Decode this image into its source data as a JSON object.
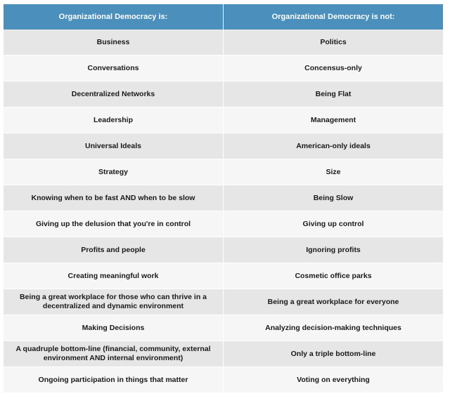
{
  "table": {
    "headers": [
      "Organizational Democracy is:",
      "Organizational Democracy is not:"
    ],
    "rows": [
      [
        "Business",
        "Politics"
      ],
      [
        "Conversations",
        "Concensus-only"
      ],
      [
        "Decentralized Networks",
        "Being Flat"
      ],
      [
        "Leadership",
        "Management"
      ],
      [
        "Universal Ideals",
        "American-only ideals"
      ],
      [
        "Strategy",
        "Size"
      ],
      [
        "Knowing when to be fast AND when to be slow",
        "Being Slow"
      ],
      [
        "Giving up the delusion that you're in control",
        "Giving up control"
      ],
      [
        "Profits and people",
        "Ignoring profits"
      ],
      [
        "Creating meaningful work",
        "Cosmetic office parks"
      ],
      [
        "Being a great workplace for those who can thrive in a decentralized and dynamic environment",
        "Being a great workplace for everyone"
      ],
      [
        "Making Decisions",
        "Analyzing decision-making techniques"
      ],
      [
        "A quadruple bottom-line (financial, community, external environment AND internal environment)",
        "Only a triple bottom-line"
      ],
      [
        "Ongoing participation in things that matter",
        "Voting on everything"
      ]
    ]
  },
  "colors": {
    "header_bg": "#4b8fbd",
    "row_dark": "#e6e6e6",
    "row_light": "#f6f6f6"
  }
}
